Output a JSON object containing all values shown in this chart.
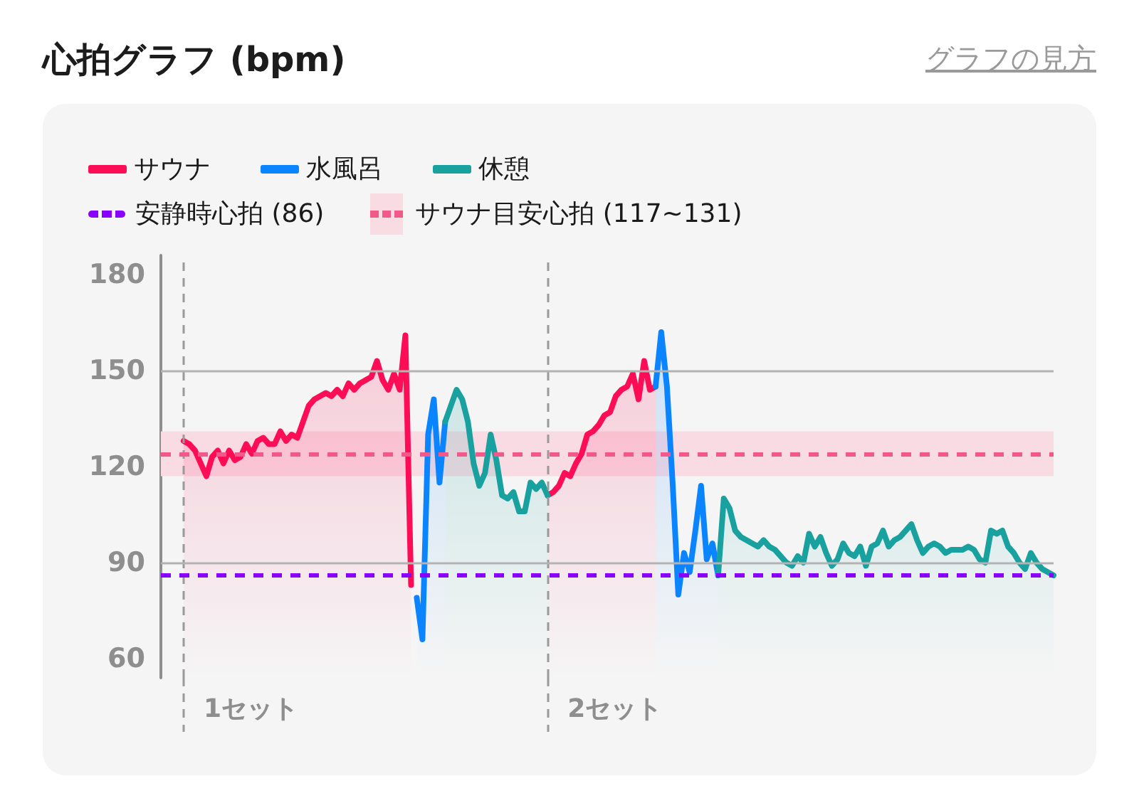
{
  "chart_data": {
    "type": "area",
    "title": "心拍グラフ (bpm)",
    "annotations": [
      "グラフの見方",
      "1セット",
      "2セット"
    ],
    "categories": [
      null,
      null,
      null,
      null,
      null,
      null,
      null,
      null,
      null,
      null,
      null,
      null,
      null,
      null,
      null,
      null,
      null,
      null,
      null,
      null,
      null,
      null,
      null,
      null,
      null,
      null,
      null,
      null,
      null,
      null,
      null,
      null,
      null,
      null,
      null,
      null,
      null,
      null,
      null,
      null,
      null,
      null,
      null,
      null,
      null,
      null,
      null,
      null,
      null,
      null,
      null,
      null,
      null,
      null,
      null,
      null,
      null,
      null,
      null,
      null,
      null,
      null,
      null,
      null,
      null,
      null,
      null,
      null,
      null,
      null,
      null,
      null,
      null,
      null,
      null,
      null,
      null,
      null,
      null,
      null,
      null,
      null,
      null,
      null,
      null,
      null,
      null,
      null,
      null,
      null,
      null,
      null,
      null,
      null,
      null,
      null,
      null,
      null,
      null,
      null,
      null,
      null,
      null,
      null,
      null,
      null,
      null,
      null,
      null,
      null,
      null,
      null,
      null,
      null,
      null,
      null,
      null,
      null,
      null,
      null,
      null,
      null,
      null,
      null,
      null,
      null,
      null,
      null,
      null,
      null,
      null,
      null,
      null,
      null,
      null,
      null,
      null,
      null,
      null,
      null,
      null,
      null,
      null,
      null,
      null,
      null,
      null,
      null,
      null,
      null,
      null,
      null,
      null,
      null,
      null,
      null,
      null,
      null
    ],
    "series": [
      {
        "name": "サウナ",
        "color": "#fc0d56",
        "values": [
          null,
          null,
          null,
          null,
          128,
          127,
          125,
          121,
          117,
          123,
          125,
          121,
          125,
          122,
          123,
          127,
          124,
          128,
          129,
          127,
          127,
          131,
          128,
          130,
          129,
          134,
          139,
          141,
          142,
          143,
          142,
          144,
          142,
          146,
          144,
          146,
          147,
          148,
          153,
          147,
          144,
          149,
          144,
          161,
          83,
          null,
          null,
          null,
          null,
          null,
          null,
          null,
          null,
          null,
          null,
          null,
          null,
          null,
          null,
          null,
          null,
          null,
          null,
          null,
          null,
          null,
          null,
          null,
          111,
          112,
          114,
          118,
          117,
          121,
          124,
          130,
          131,
          133,
          136,
          137,
          142,
          144,
          145,
          149,
          141,
          153,
          144,
          145,
          null,
          null,
          null,
          null,
          null,
          null,
          null,
          null,
          null,
          null,
          null,
          null,
          null,
          null,
          null,
          null,
          null,
          null,
          null,
          null,
          null,
          null,
          null,
          null,
          null,
          null,
          null,
          null,
          null,
          null,
          null,
          null,
          null,
          null,
          null,
          null,
          null,
          null,
          null,
          null,
          null,
          null,
          null,
          null,
          null,
          null,
          null,
          null,
          null,
          null,
          null,
          null,
          null,
          null,
          null,
          null,
          null,
          null,
          null,
          null,
          null,
          null,
          null,
          null,
          null,
          null,
          null,
          null,
          null,
          null
        ]
      },
      {
        "name": "水風呂",
        "color": "#0a84ff",
        "values": [
          null,
          null,
          null,
          null,
          null,
          null,
          null,
          null,
          null,
          null,
          null,
          null,
          null,
          null,
          null,
          null,
          null,
          null,
          null,
          null,
          null,
          null,
          null,
          null,
          null,
          null,
          null,
          null,
          null,
          null,
          null,
          null,
          null,
          null,
          null,
          null,
          null,
          null,
          null,
          null,
          null,
          null,
          null,
          null,
          null,
          79,
          66,
          130,
          141,
          115,
          134,
          null,
          null,
          null,
          null,
          null,
          null,
          null,
          null,
          null,
          null,
          null,
          null,
          null,
          null,
          null,
          null,
          null,
          null,
          null,
          null,
          null,
          null,
          null,
          null,
          null,
          null,
          null,
          null,
          null,
          null,
          null,
          null,
          null,
          null,
          null,
          null,
          145,
          162,
          145,
          115,
          80,
          93,
          87,
          100,
          114,
          91,
          96,
          86,
          null,
          null,
          null,
          null,
          null,
          null,
          null,
          null,
          null,
          null,
          null,
          null,
          null,
          null,
          null,
          null,
          null,
          null,
          null,
          null,
          null,
          null,
          null,
          null,
          null,
          null,
          null,
          null,
          null,
          null,
          null,
          null,
          null,
          null,
          null,
          null,
          null,
          null,
          null,
          null,
          null,
          null,
          null,
          null,
          null,
          null,
          null,
          null,
          null,
          null,
          null,
          null,
          null,
          null,
          null,
          null,
          null,
          null,
          null
        ]
      },
      {
        "name": "休憩",
        "color": "#18a19e",
        "values": [
          null,
          null,
          null,
          null,
          null,
          null,
          null,
          null,
          null,
          null,
          null,
          null,
          null,
          null,
          null,
          null,
          null,
          null,
          null,
          null,
          null,
          null,
          null,
          null,
          null,
          null,
          null,
          null,
          null,
          null,
          null,
          null,
          null,
          null,
          null,
          null,
          null,
          null,
          null,
          null,
          null,
          null,
          null,
          null,
          null,
          null,
          null,
          null,
          null,
          null,
          134,
          139,
          144,
          141,
          134,
          121,
          114,
          118,
          130,
          122,
          111,
          110,
          112,
          106,
          106,
          115,
          113,
          115,
          111,
          null,
          null,
          null,
          null,
          null,
          null,
          null,
          null,
          null,
          null,
          null,
          null,
          null,
          null,
          null,
          null,
          null,
          null,
          null,
          null,
          null,
          null,
          null,
          null,
          null,
          null,
          null,
          null,
          null,
          86,
          110,
          107,
          100,
          98,
          97,
          96,
          95,
          97,
          95,
          94,
          92,
          90,
          89,
          92,
          90,
          99,
          95,
          98,
          93,
          89,
          91,
          96,
          93,
          92,
          95,
          89,
          95,
          96,
          100,
          95,
          97,
          98,
          100,
          102,
          97,
          93,
          95,
          96,
          95,
          93,
          94,
          94,
          94,
          95,
          94,
          91,
          90,
          100,
          99,
          100,
          95,
          93,
          90,
          88,
          93,
          90,
          88,
          87,
          86
        ]
      }
    ],
    "ylim": [
      54,
      186
    ],
    "yticks": [
      60,
      90,
      120,
      150,
      180
    ],
    "tick_labels": "y",
    "ref_lines": [
      {
        "axis": "y",
        "value": 150,
        "color": "#b3b3b3",
        "line_style": "solid"
      },
      {
        "axis": "y",
        "value": 90,
        "color": "#b3b3b3",
        "line_style": "solid"
      },
      {
        "axis": "y",
        "value": 86,
        "label": "安静時心拍 (86)",
        "color": "#8a00ff",
        "line_style": "dashed"
      },
      {
        "axis": "y",
        "value": 124,
        "color": "#f2588a",
        "line_style": "dashed"
      }
    ],
    "bands": [
      {
        "axis": "y",
        "from": 117,
        "to": 131,
        "label": "サウナ目安心拍 (117~131)",
        "color": "#f9dbe3"
      }
    ],
    "legend": "top left",
    "marker": "none"
  }
}
